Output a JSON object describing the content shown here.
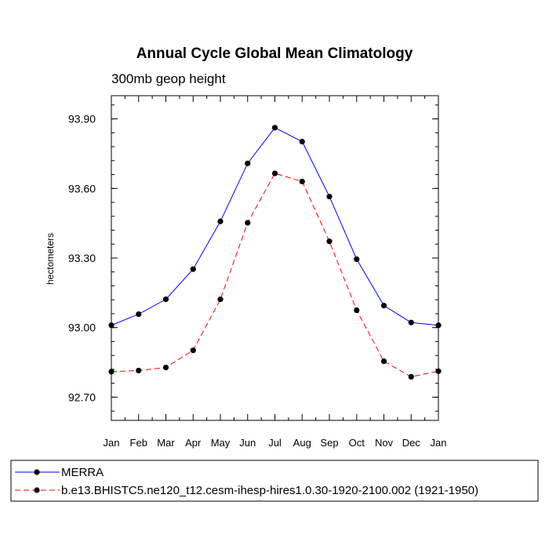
{
  "chart_data": {
    "type": "line",
    "title": "Annual Cycle Global Mean Climatology",
    "subtitle": "300mb geop height",
    "xlabel": "",
    "ylabel": "hectometers",
    "categories": [
      "Jan",
      "Feb",
      "Mar",
      "Apr",
      "May",
      "Jun",
      "Jul",
      "Aug",
      "Sep",
      "Oct",
      "Nov",
      "Dec",
      "Jan"
    ],
    "ylim": [
      92.6,
      94.0
    ],
    "yticks": [
      92.7,
      93.0,
      93.3,
      93.6,
      93.9
    ],
    "ytick_labels": [
      "92.70",
      "93.00",
      "93.30",
      "93.60",
      "93.90"
    ],
    "grid": false,
    "legend_position": "bottom",
    "series": [
      {
        "name": "MERRA",
        "color": "#0000ff",
        "dash": "solid",
        "values": [
          93.01,
          93.058,
          93.122,
          93.252,
          93.458,
          93.708,
          93.862,
          93.802,
          93.565,
          93.295,
          93.095,
          93.022,
          93.01
        ]
      },
      {
        "name": "b.e13.BHISTC5.ne120_t12.cesm-ihesp-hires1.0.30-1920-2100.002 (1921-1950)",
        "color": "#ff0000",
        "dash": "dashed",
        "values": [
          92.81,
          92.815,
          92.828,
          92.902,
          93.122,
          93.452,
          93.665,
          93.63,
          93.372,
          93.075,
          92.855,
          92.788,
          92.812
        ]
      }
    ]
  }
}
